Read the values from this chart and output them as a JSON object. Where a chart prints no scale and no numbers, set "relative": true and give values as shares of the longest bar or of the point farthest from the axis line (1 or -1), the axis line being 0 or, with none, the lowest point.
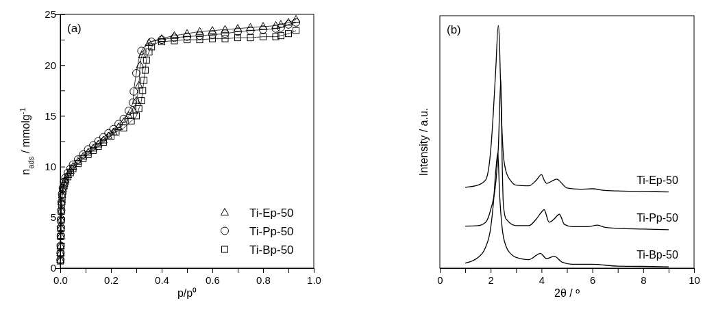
{
  "chart_data": [
    {
      "type": "line",
      "xlabel": "p/p⁰",
      "ylabel": "n$_{ads}$ / mmolg$^{-1}$",
      "annotations": [
        "(a)"
      ],
      "xlim": [
        0,
        1
      ],
      "ylim": [
        0,
        25
      ],
      "xticks": [
        {
          "value": 0,
          "label": "0.0"
        },
        {
          "value": 0.1,
          "label": null
        },
        {
          "value": 0.2,
          "label": "0.2"
        },
        {
          "value": 0.3,
          "label": null
        },
        {
          "value": 0.4,
          "label": "0.4"
        },
        {
          "value": 0.5,
          "label": null
        },
        {
          "value": 0.6,
          "label": "0.6"
        },
        {
          "value": 0.7,
          "label": null
        },
        {
          "value": 0.8,
          "label": "0.8"
        },
        {
          "value": 0.9,
          "label": null
        },
        {
          "value": 1,
          "label": "1.0"
        }
      ],
      "yticks": [
        0,
        {
          "value": 2.5,
          "label": null
        },
        5,
        {
          "value": 7.5,
          "label": null
        },
        10,
        {
          "value": 12.5,
          "label": null
        },
        15,
        {
          "value": 17.5,
          "label": null
        },
        20,
        {
          "value": 22.5,
          "label": null
        },
        25
      ],
      "legend": "bottom right",
      "series": [
        {
          "name": "Ti-Ep-50",
          "color": "#000000",
          "marker": "triangle",
          "x": [
            0.0005,
            0.001,
            0.0015,
            0.002,
            0.0025,
            0.003,
            0.004,
            0.005,
            0.007,
            0.01,
            0.015,
            0.02,
            0.03,
            0.04,
            0.05,
            0.07,
            0.09,
            0.11,
            0.13,
            0.15,
            0.17,
            0.19,
            0.21,
            0.23,
            0.25,
            0.27,
            0.29,
            0.3,
            0.31,
            0.315,
            0.323,
            0.35,
            0.4,
            0.45,
            0.5,
            0.55,
            0.6,
            0.65,
            0.7,
            0.75,
            0.8,
            0.85,
            0.87,
            0.9,
            0.93
          ],
          "values": [
            0.8,
            1.5,
            2.2,
            3.2,
            4,
            4.8,
            5.7,
            6.5,
            7.2,
            7.8,
            8.3,
            8.7,
            9.2,
            9.6,
            10,
            10.5,
            11,
            11.4,
            11.8,
            12.2,
            12.6,
            13,
            13.4,
            13.9,
            14.4,
            15,
            15.5,
            16.5,
            18,
            20,
            21,
            22.2,
            22.6,
            22.9,
            23.1,
            23.3,
            23.4,
            23.5,
            23.6,
            23.7,
            23.8,
            23.9,
            24,
            24.2,
            24.5
          ]
        },
        {
          "name": "Ti-Pp-50",
          "color": "#000000",
          "marker": "circle",
          "x": [
            0.0005,
            0.001,
            0.0015,
            0.002,
            0.0025,
            0.003,
            0.004,
            0.005,
            0.007,
            0.01,
            0.015,
            0.02,
            0.03,
            0.04,
            0.05,
            0.07,
            0.09,
            0.11,
            0.13,
            0.15,
            0.17,
            0.19,
            0.21,
            0.23,
            0.25,
            0.27,
            0.286,
            0.29,
            0.3,
            0.32,
            0.36,
            0.4,
            0.45,
            0.5,
            0.55,
            0.6,
            0.65,
            0.7,
            0.75,
            0.8,
            0.85,
            0.87,
            0.9,
            0.93
          ],
          "values": [
            0.8,
            1.5,
            2.2,
            3.2,
            4,
            4.8,
            5.7,
            6.5,
            7.3,
            7.9,
            8.5,
            8.9,
            9.4,
            9.8,
            10.2,
            10.7,
            11.2,
            11.7,
            12.1,
            12.5,
            12.9,
            13.3,
            13.7,
            14.2,
            14.7,
            15.5,
            16.3,
            17.4,
            19.2,
            21.4,
            22.3,
            22.5,
            22.7,
            22.8,
            22.9,
            23,
            23.1,
            23.3,
            23.4,
            23.5,
            23.6,
            23.7,
            24,
            24.2
          ]
        },
        {
          "name": "Ti-Bp-50",
          "color": "#000000",
          "marker": "square",
          "x": [
            0.0005,
            0.001,
            0.0015,
            0.002,
            0.0025,
            0.003,
            0.004,
            0.005,
            0.007,
            0.01,
            0.015,
            0.02,
            0.03,
            0.04,
            0.05,
            0.07,
            0.09,
            0.11,
            0.13,
            0.15,
            0.17,
            0.2,
            0.22,
            0.25,
            0.28,
            0.3,
            0.31,
            0.32,
            0.325,
            0.33,
            0.335,
            0.34,
            0.35,
            0.36,
            0.4,
            0.45,
            0.5,
            0.55,
            0.6,
            0.65,
            0.7,
            0.75,
            0.8,
            0.85,
            0.87,
            0.9,
            0.93
          ],
          "values": [
            0.7,
            1.4,
            2.1,
            3.1,
            3.9,
            4.7,
            5.6,
            6.3,
            7,
            7.6,
            8.1,
            8.5,
            9,
            9.4,
            9.8,
            10.3,
            10.8,
            11.2,
            11.6,
            12,
            12.4,
            13,
            13.4,
            13.8,
            14.5,
            15,
            15.7,
            16.5,
            17.5,
            18.5,
            19.5,
            20.5,
            21.3,
            21.8,
            22.3,
            22.4,
            22.5,
            22.5,
            22.6,
            22.6,
            22.7,
            22.7,
            22.8,
            22.8,
            22.9,
            23.1,
            23.4
          ]
        }
      ]
    },
    {
      "type": "line",
      "xlabel": "2θ / º",
      "ylabel": "Intensity / a.u.",
      "annotations": [
        "(b)"
      ],
      "relative": true,
      "tick_labels": "x",
      "xlim": [
        0,
        10
      ],
      "xticks": [
        0,
        {
          "value": 1,
          "label": null
        },
        2,
        {
          "value": 3,
          "label": null
        },
        4,
        {
          "value": 5,
          "label": null
        },
        6,
        {
          "value": 7,
          "label": null
        },
        8,
        {
          "value": 9,
          "label": null
        },
        10
      ],
      "series": [
        {
          "name": "Ti-Ep-50",
          "color": "#000000",
          "x": [
            1,
            1.5,
            1.8,
            2,
            2.1,
            2.2,
            2.3,
            2.35,
            2.4,
            2.5,
            2.6,
            2.8,
            3,
            3.5,
            3.8,
            4,
            4.1,
            4.2,
            4.4,
            4.6,
            4.8,
            5,
            5.5,
            6,
            6.5,
            7,
            8,
            9
          ],
          "values": [
            0.333,
            0.342,
            0.363,
            0.485,
            0.634,
            0.822,
            1,
            0.916,
            0.709,
            0.466,
            0.4,
            0.358,
            0.342,
            0.339,
            0.363,
            0.386,
            0.363,
            0.349,
            0.358,
            0.367,
            0.349,
            0.33,
            0.325,
            0.327,
            0.32,
            0.318,
            0.316,
            0.314
          ]
        },
        {
          "name": "Ti-Pp-50",
          "color": "#000000",
          "x": [
            1,
            1.5,
            1.8,
            2,
            2.2,
            2.3,
            2.4,
            2.45,
            2.5,
            2.6,
            3,
            3.5,
            3.8,
            4,
            4.1,
            4.3,
            4.5,
            4.7,
            4.9,
            5.2,
            5.8,
            6.2,
            6.5,
            7,
            8,
            9
          ],
          "values": [
            0.173,
            0.175,
            0.189,
            0.241,
            0.353,
            0.494,
            0.777,
            0.447,
            0.26,
            0.203,
            0.175,
            0.175,
            0.203,
            0.231,
            0.241,
            0.189,
            0.203,
            0.222,
            0.18,
            0.171,
            0.171,
            0.177,
            0.168,
            0.164,
            0.161,
            0.158
          ]
        },
        {
          "name": "Ti-Bp-50",
          "color": "#000000",
          "x": [
            1,
            1.5,
            1.8,
            2,
            2.1,
            2.2,
            2.28,
            2.35,
            2.45,
            2.6,
            2.8,
            3,
            3.5,
            3.8,
            3.95,
            4.2,
            4.5,
            4.8,
            5.2,
            6,
            7,
            8,
            9
          ],
          "values": [
            0.021,
            0.044,
            0.086,
            0.166,
            0.26,
            0.4,
            0.475,
            0.306,
            0.166,
            0.091,
            0.058,
            0.044,
            0.035,
            0.053,
            0.061,
            0.039,
            0.049,
            0.025,
            0.016,
            0.016,
            0.008,
            0.007,
            0.005
          ]
        }
      ]
    }
  ]
}
